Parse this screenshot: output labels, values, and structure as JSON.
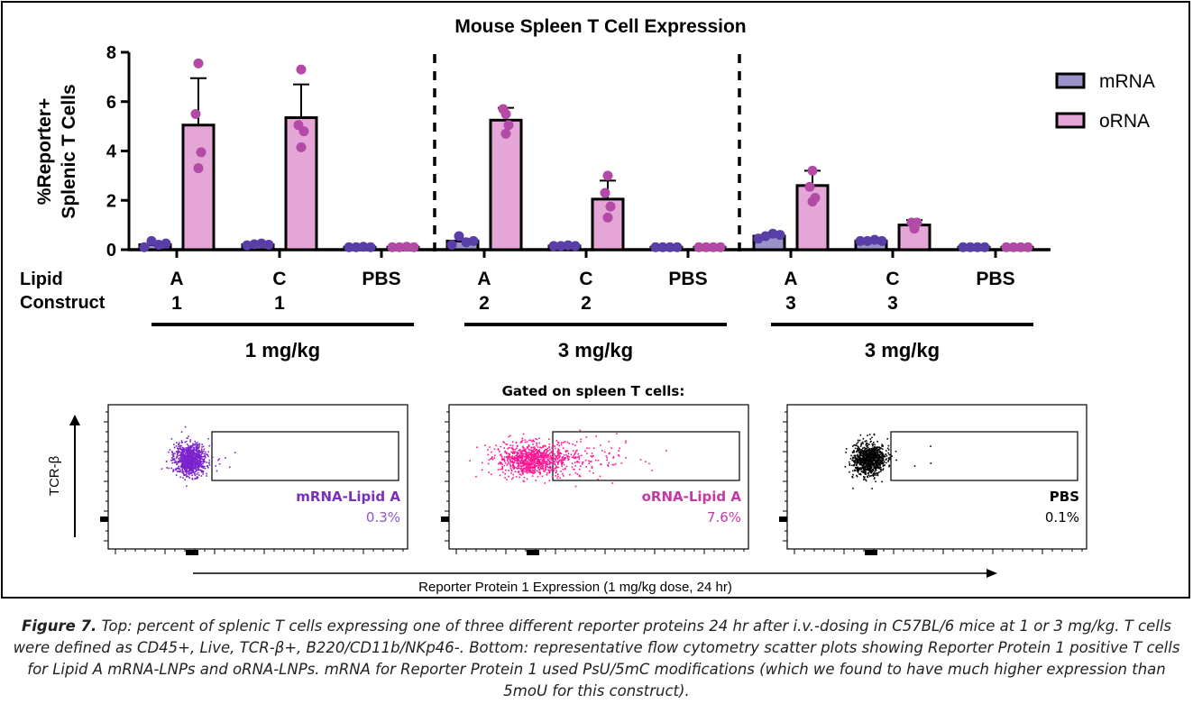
{
  "chart_data": {
    "type": "bar",
    "title": "Mouse Spleen T Cell Expression",
    "ylabel_lines": [
      "%Reporter+",
      "Splenic T Cells"
    ],
    "ylim": [
      0,
      8
    ],
    "yticks": [
      0,
      2,
      4,
      6,
      8
    ],
    "legend_position": "top-right",
    "series": [
      {
        "name": "mRNA",
        "color": "#9b92c9",
        "dot_color": "#5a3ea8"
      },
      {
        "name": "oRNA",
        "color": "#e3a6d6",
        "dot_color": "#b24aa6"
      }
    ],
    "row_label_lines": [
      "Lipid",
      "Construct"
    ],
    "categories": [
      {
        "line1": "A",
        "line2": "1"
      },
      {
        "line1": "C",
        "line2": "1"
      },
      {
        "line1": "PBS",
        "line2": ""
      },
      {
        "line1": "A",
        "line2": "2"
      },
      {
        "line1": "C",
        "line2": "2"
      },
      {
        "line1": "PBS",
        "line2": ""
      },
      {
        "line1": "A",
        "line2": "3"
      },
      {
        "line1": "C",
        "line2": "3"
      },
      {
        "line1": "PBS",
        "line2": ""
      }
    ],
    "dose_groups": [
      "1 mg/kg",
      "3 mg/kg",
      "3 mg/kg"
    ],
    "bars": [
      {
        "cat": 0,
        "series": 0,
        "mean": 0.2,
        "sd": 0.1,
        "points": [
          0.1,
          0.35,
          0.2,
          0.25
        ]
      },
      {
        "cat": 0,
        "series": 1,
        "mean": 5.05,
        "sd": 1.9,
        "points": [
          7.55,
          5.5,
          3.95,
          3.3
        ]
      },
      {
        "cat": 1,
        "series": 0,
        "mean": 0.2,
        "sd": 0.05,
        "points": [
          0.18,
          0.22,
          0.25,
          0.2
        ]
      },
      {
        "cat": 1,
        "series": 1,
        "mean": 5.35,
        "sd": 1.35,
        "points": [
          7.3,
          5.05,
          4.8,
          4.15
        ]
      },
      {
        "cat": 2,
        "series": 0,
        "mean": 0.1,
        "sd": 0.02,
        "points": [
          0.1,
          0.1,
          0.12,
          0.1
        ]
      },
      {
        "cat": 2,
        "series": 1,
        "mean": 0.1,
        "sd": 0.02,
        "points": [
          0.1,
          0.1,
          0.12,
          0.1
        ]
      },
      {
        "cat": 3,
        "series": 0,
        "mean": 0.35,
        "sd": 0.15,
        "points": [
          0.2,
          0.55,
          0.3,
          0.35
        ]
      },
      {
        "cat": 3,
        "series": 1,
        "mean": 5.25,
        "sd": 0.5,
        "points": [
          5.5,
          5.7,
          5.05,
          4.7
        ]
      },
      {
        "cat": 4,
        "series": 0,
        "mean": 0.15,
        "sd": 0.03,
        "points": [
          0.15,
          0.15,
          0.18,
          0.15
        ]
      },
      {
        "cat": 4,
        "series": 1,
        "mean": 2.05,
        "sd": 0.75,
        "points": [
          3.0,
          2.3,
          1.75,
          1.3
        ]
      },
      {
        "cat": 5,
        "series": 0,
        "mean": 0.1,
        "sd": 0.02,
        "points": [
          0.1,
          0.1,
          0.1,
          0.1
        ]
      },
      {
        "cat": 5,
        "series": 1,
        "mean": 0.1,
        "sd": 0.02,
        "points": [
          0.1,
          0.1,
          0.1,
          0.1
        ]
      },
      {
        "cat": 6,
        "series": 0,
        "mean": 0.55,
        "sd": 0.1,
        "points": [
          0.45,
          0.55,
          0.65,
          0.6
        ]
      },
      {
        "cat": 6,
        "series": 1,
        "mean": 2.6,
        "sd": 0.6,
        "points": [
          3.2,
          2.55,
          2.1,
          1.95
        ]
      },
      {
        "cat": 7,
        "series": 0,
        "mean": 0.35,
        "sd": 0.05,
        "points": [
          0.35,
          0.35,
          0.4,
          0.35
        ]
      },
      {
        "cat": 7,
        "series": 1,
        "mean": 1.0,
        "sd": 0.2,
        "points": [
          0.85,
          1.1,
          1.1,
          0.9
        ]
      },
      {
        "cat": 8,
        "series": 0,
        "mean": 0.1,
        "sd": 0.02,
        "points": [
          0.1,
          0.1,
          0.1,
          0.1
        ]
      },
      {
        "cat": 8,
        "series": 1,
        "mean": 0.1,
        "sd": 0.02,
        "points": [
          0.1,
          0.1,
          0.1,
          0.1
        ]
      }
    ]
  },
  "flow": {
    "heading": "Gated on spleen T cells:",
    "yaxis_label": "TCR-β",
    "xaxis_label": "Reporter Protein 1 Expression (1 mg/kg dose, 24 hr)",
    "panels": [
      {
        "name": "mRNA-Lipid A",
        "percent": 0.3,
        "percent_label": "0.3%",
        "color": "#7a22cc",
        "label_color": "#7b2fbf",
        "percent_color": "#8e55c8"
      },
      {
        "name": "oRNA-Lipid A",
        "percent": 7.6,
        "percent_label": "7.6%",
        "color": "#ff1493",
        "label_color": "#c837a8",
        "percent_color": "#c837a8"
      },
      {
        "name": "PBS",
        "percent": 0.1,
        "percent_label": "0.1%",
        "color": "#000000",
        "label_color": "#000000",
        "percent_color": "#000000"
      }
    ]
  },
  "caption": {
    "label": "Figure 7.",
    "text": " Top: percent of splenic T cells expressing one of three different reporter proteins 24 hr after i.v.-dosing in C57BL/6 mice at 1 or 3 mg/kg. T cells were defined as CD45+, Live, TCR-β+, B220/CD11b/NKp46-. Bottom: representative flow cytometry scatter plots showing Reporter Protein 1 positive T cells for Lipid A mRNA-LNPs and oRNA-LNPs. mRNA for Reporter Protein 1 used PsU/5mC modifications (which we found to have much higher expression than 5moU for this construct)."
  }
}
